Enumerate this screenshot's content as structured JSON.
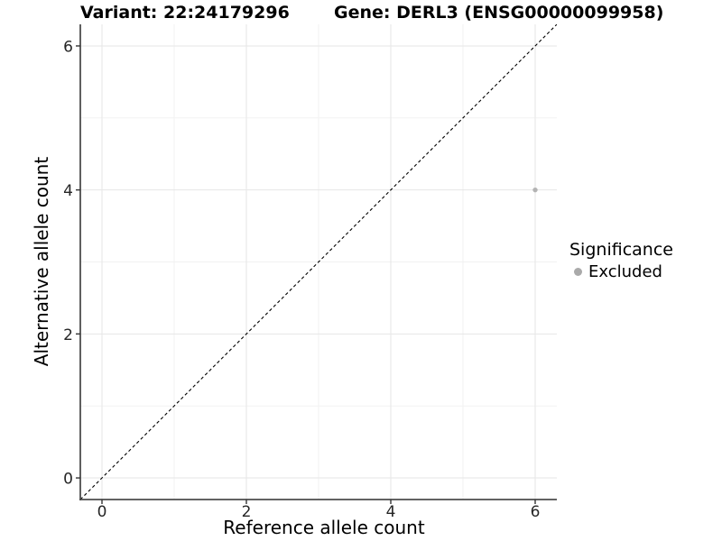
{
  "header": {
    "variant_title": "Variant: 22:24179296",
    "gene_title": "Gene: DERL3 (ENSG00000099958)"
  },
  "chart_data": {
    "type": "scatter",
    "xlabel": "Reference allele count",
    "ylabel": "Alternative allele count",
    "xlim": [
      -0.3,
      6.3
    ],
    "ylim": [
      -0.3,
      6.3
    ],
    "x_ticks": [
      0,
      2,
      4,
      6
    ],
    "y_ticks": [
      0,
      2,
      4,
      6
    ],
    "x_minor_ticks": [
      1,
      3,
      5
    ],
    "y_minor_ticks": [
      1,
      3,
      5
    ],
    "grid": true,
    "points": [
      {
        "x": 6,
        "y": 4,
        "significance": "Excluded"
      }
    ],
    "reference_line": {
      "slope": 1,
      "intercept": 0,
      "style": "dashed",
      "color": "#000000"
    },
    "legend": {
      "title": "Significance",
      "position": "right",
      "entries": [
        {
          "label": "Excluded",
          "color": "#aaaaaa"
        }
      ]
    },
    "colors": {
      "point_excluded": "#b3b3b3",
      "grid_major": "#e6e6e6",
      "grid_minor": "#f2f2f2",
      "axis_line": "#4d4d4d",
      "tick_mark": "#333333",
      "tick_label": "#262626"
    }
  }
}
